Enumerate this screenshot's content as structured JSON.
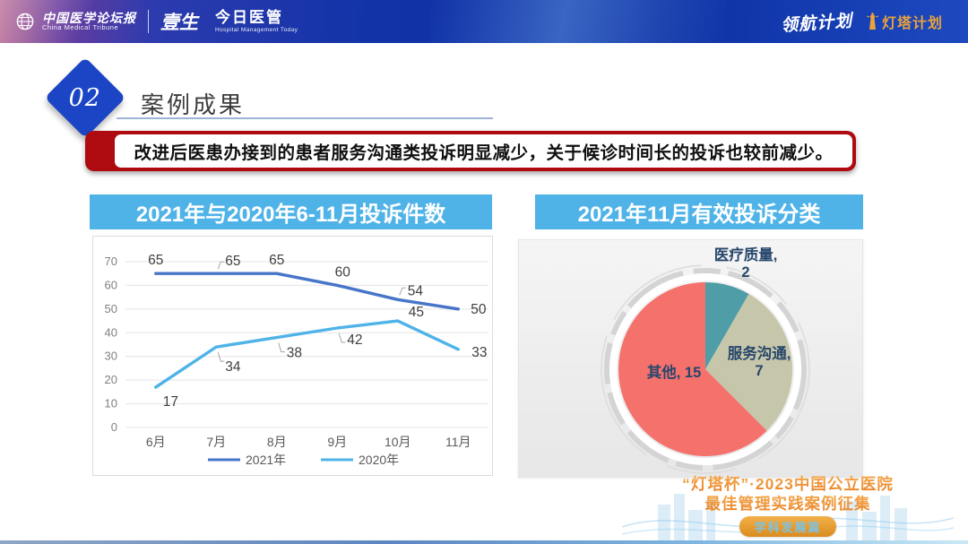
{
  "header": {
    "logo_cmt_cn": "中国医学论坛报",
    "logo_cmt_en": "China Medical Tribune",
    "logo_yisheng": "壹生",
    "logo_jryg_cn": "今日医管",
    "logo_jryg_en": "Hospital Management Today",
    "logo_linghang": "领航计划",
    "logo_dengta": "灯塔计划"
  },
  "section": {
    "number": "02",
    "title": "案例成果"
  },
  "banner": {
    "text": "改进后医患办接到的患者服务沟通类投诉明显减少，关于候诊时间长的投诉也较前减少。"
  },
  "chart_data": [
    {
      "type": "line",
      "title": "2021年与2020年6-11月投诉件数",
      "categories": [
        "6月",
        "7月",
        "8月",
        "9月",
        "10月",
        "11月"
      ],
      "series": [
        {
          "name": "2021年",
          "color": "#4775c8",
          "values": [
            65,
            65,
            65,
            60,
            54,
            50
          ]
        },
        {
          "name": "2020年",
          "color": "#4fb3e8",
          "values": [
            17,
            34,
            38,
            42,
            45,
            33
          ]
        }
      ],
      "ylim": [
        0,
        70
      ],
      "ytick_step": 10,
      "grid": true,
      "legend_position": "bottom"
    },
    {
      "type": "pie",
      "title": "2021年11月有效投诉分类",
      "slices": [
        {
          "label": "医疗质量",
          "value": 2,
          "color": "#4f9da6"
        },
        {
          "label": "服务沟通",
          "value": 7,
          "color": "#c6c6aa"
        },
        {
          "label": "其他",
          "value": 15,
          "color": "#f4716c"
        }
      ],
      "start_angle": "top",
      "direction": "clockwise",
      "label_color": "#26466b"
    }
  ],
  "footer": {
    "line1": "“灯塔杯”·2023中国公立医院",
    "line2": "最佳管理实践案例征集",
    "badge": "学科发展篇"
  },
  "colors": {
    "title_bar_blue": "#4fb3e8",
    "banner_red": "#ae0b10",
    "diamond_blue": "#1b45c4",
    "footer_orange": "#ec8c2d",
    "pie_label_navy": "#26466b"
  }
}
